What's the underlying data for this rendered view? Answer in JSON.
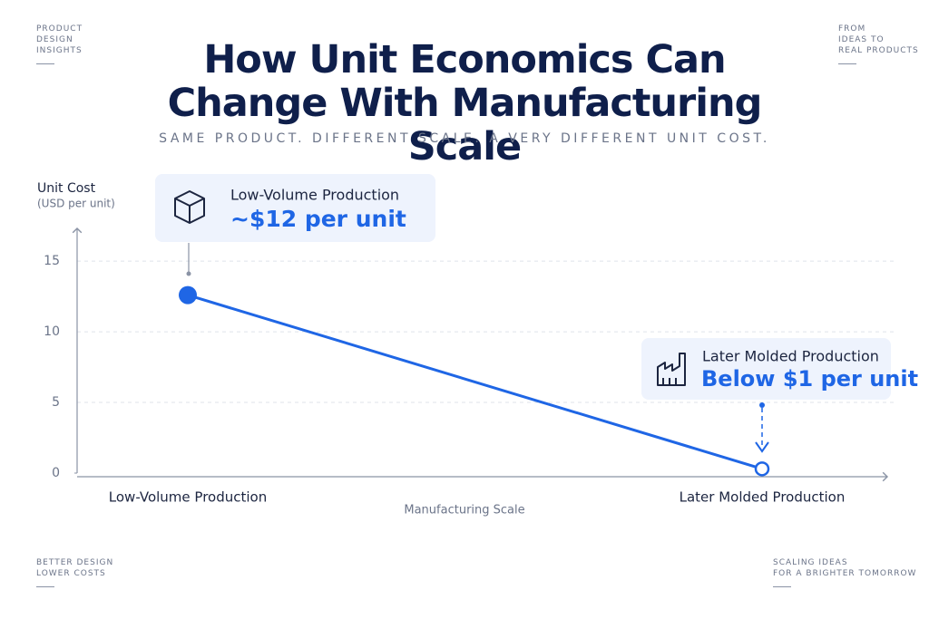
{
  "chart_data": {
    "type": "line",
    "title": "How Unit Economics Can Change With Manufacturing Scale",
    "subtitle": "SAME PRODUCT. DIFFERENT SCALE. A VERY DIFFERENT UNIT COST.",
    "y_label": "Unit Cost",
    "y_unit": "(USD per unit)",
    "x_label": "Manufacturing Scale",
    "categories": [
      "Low-Volume Production",
      "Later Molded Production"
    ],
    "values": [
      12.6,
      0.3
    ],
    "color": "#1f66e5",
    "ylim": [
      0,
      17
    ],
    "yticks": [
      0,
      5,
      10,
      15
    ],
    "grid": true,
    "annotations": [
      {
        "title": "Low-Volume Production",
        "text": "~$12 per unit"
      },
      {
        "title": "Later Molded Production",
        "text": "Below $1 per unit"
      }
    ]
  },
  "corner_notes": {
    "top_left": [
      "PRODUCT",
      "DESIGN",
      "INSIGHTS"
    ],
    "top_right": [
      "FROM",
      "IDEAS TO",
      "REAL PRODUCTS"
    ],
    "bottom_left": [
      "BETTER DESIGN",
      "LOWER COSTS"
    ],
    "bottom_right": [
      "SCALING IDEAS",
      "FOR A BRIGHTER TOMORROW"
    ]
  }
}
